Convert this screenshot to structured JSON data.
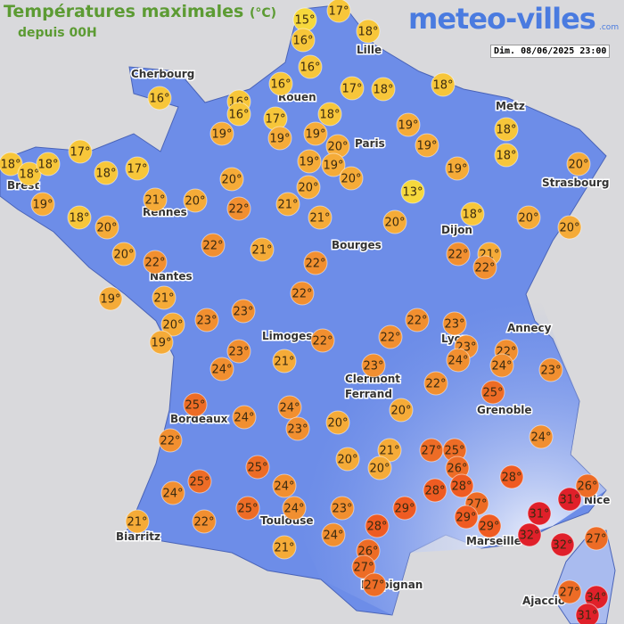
{
  "header": {
    "title": "Températures maximales",
    "unit": "(°C)",
    "subtitle": "depuis 00H",
    "brand": "meteo-villes",
    "brand_suffix": ".com",
    "timestamp": "Dim. 08/06/2025 23:00"
  },
  "cities": [
    "Cherbourg",
    "Lille",
    "Rouen",
    "Paris",
    "Metz",
    "Strasbourg",
    "Brest",
    "Rennes",
    "Dijon",
    "Bourges",
    "Nantes",
    "Annecy",
    "Limoges",
    "Lyon",
    "Clermont",
    "Ferrand",
    "Grenoble",
    "Bordeaux",
    "Nice",
    "Toulouse",
    "Marseille",
    "Biarritz",
    "Perpignan",
    "Ajaccio"
  ],
  "temperatures": [
    "15°",
    "17°",
    "16°",
    "18°",
    "16°",
    "16°",
    "16°",
    "17°",
    "18°",
    "18°",
    "16°",
    "16°",
    "17°",
    "18°",
    "19°",
    "18°",
    "19°",
    "19°",
    "19°",
    "20°",
    "19°",
    "18°",
    "17°",
    "18°",
    "18°",
    "18°",
    "18°",
    "17°",
    "19°",
    "19°",
    "20°",
    "19°",
    "20°",
    "20°",
    "20°",
    "13°",
    "19°",
    "21°",
    "20°",
    "22°",
    "21°",
    "18°",
    "18°",
    "21°",
    "20°",
    "20°",
    "20°",
    "20°",
    "22°",
    "21°",
    "20°",
    "22°",
    "22°",
    "22°",
    "21°",
    "22°",
    "22°",
    "19°",
    "21°",
    "23°",
    "22°",
    "23°",
    "20°",
    "23°",
    "19°",
    "22°",
    "22°",
    "23°",
    "22°",
    "23°",
    "24°",
    "24°",
    "23°",
    "24°",
    "21°",
    "23°",
    "22°",
    "25°",
    "25°",
    "24°",
    "20°",
    "24°",
    "20°",
    "23°",
    "24°",
    "22°",
    "21°",
    "27°",
    "25°",
    "20°",
    "26°",
    "20°",
    "25°",
    "28°",
    "25°",
    "24°",
    "26°",
    "28°",
    "28°",
    "31°",
    "24°",
    "24°",
    "23°",
    "29°",
    "27°",
    "25°",
    "29°",
    "31°",
    "21°",
    "22°",
    "28°",
    "29°",
    "32°",
    "24°",
    "32°",
    "27°",
    "21°",
    "26°",
    "27°",
    "27°",
    "27°",
    "34°",
    "31°"
  ]
}
